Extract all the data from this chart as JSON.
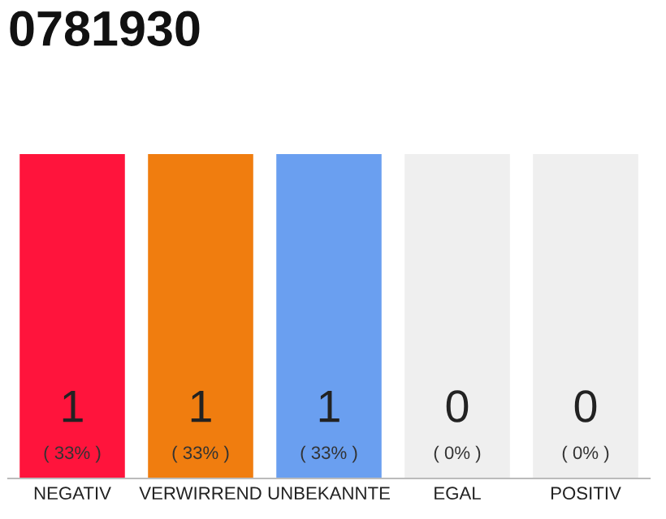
{
  "chart_data": {
    "type": "bar",
    "title": "0781930",
    "ylim": [
      0,
      1
    ],
    "tick_labels": "x",
    "categories": [
      "NEGATIV",
      "VERWIRREND",
      "UNBEKANNTE",
      "EGAL",
      "POSITIV"
    ],
    "series": [
      {
        "colors": [
          "#ff143c",
          "#f07d0f",
          "#6a9ff0",
          "#efefef",
          "#efefef"
        ],
        "values": [
          1,
          1,
          1,
          0,
          0
        ],
        "value_labels": [
          "1",
          "1",
          "1",
          "0",
          "0"
        ]
      },
      {
        "color": "#efefef",
        "values": [
          0,
          0,
          0,
          1,
          1
        ]
      }
    ],
    "annotations": [
      {
        "text": "( 33% )",
        "x": "NEGATIV",
        "y": 0
      },
      {
        "text": "( 33% )",
        "x": "VERWIRREND",
        "y": 0
      },
      {
        "text": "( 33% )",
        "x": "UNBEKANNTE",
        "y": 0
      },
      {
        "text": "( 0% )",
        "x": "EGAL",
        "y": 0
      },
      {
        "text": "( 0% )",
        "x": "POSITIV",
        "y": 0
      }
    ],
    "legend": false
  }
}
